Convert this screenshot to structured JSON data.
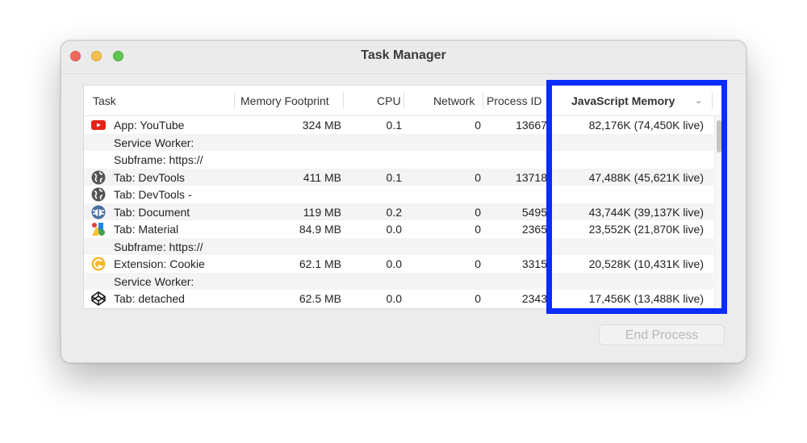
{
  "window": {
    "title": "Task Manager"
  },
  "colors": {
    "highlight": "#0a2cff",
    "close": "#ee6a5f",
    "minimize": "#f5bf4f",
    "maximize": "#61c554"
  },
  "columns": [
    "Task",
    "Memory Footprint",
    "CPU",
    "Network",
    "Process ID",
    "JavaScript Memory"
  ],
  "sort_indicator": "chevron-down-icon",
  "rows": [
    {
      "icon": "youtube-icon",
      "task": "App: YouTube",
      "memory": "324 MB",
      "cpu": "0.1",
      "network": "0",
      "pid": "13667",
      "js": "82,176K (74,450K live)"
    },
    {
      "icon": "",
      "task": "Service Worker:",
      "memory": "",
      "cpu": "",
      "network": "",
      "pid": "",
      "js": ""
    },
    {
      "icon": "",
      "task": "Subframe: https://",
      "memory": "",
      "cpu": "",
      "network": "",
      "pid": "",
      "js": ""
    },
    {
      "icon": "globe-icon",
      "task": "Tab: DevTools",
      "memory": "411 MB",
      "cpu": "0.1",
      "network": "0",
      "pid": "13718",
      "js": "47,488K (45,621K live)"
    },
    {
      "icon": "globe-icon",
      "task": "Tab: DevTools -",
      "memory": "",
      "cpu": "",
      "network": "",
      "pid": "",
      "js": ""
    },
    {
      "icon": "bug-icon",
      "task": "Tab: Document",
      "memory": "119 MB",
      "cpu": "0.2",
      "network": "0",
      "pid": "5495",
      "js": "43,744K (39,137K live)"
    },
    {
      "icon": "material-icon",
      "task": "Tab: Material",
      "memory": "84.9 MB",
      "cpu": "0.0",
      "network": "0",
      "pid": "2365",
      "js": "23,552K (21,870K live)"
    },
    {
      "icon": "",
      "task": "Subframe: https://",
      "memory": "",
      "cpu": "",
      "network": "",
      "pid": "",
      "js": ""
    },
    {
      "icon": "cookie-extension-icon",
      "task": "Extension: Cookie",
      "memory": "62.1 MB",
      "cpu": "0.0",
      "network": "0",
      "pid": "3315",
      "js": "20,528K (10,431K live)"
    },
    {
      "icon": "",
      "task": "Service Worker:",
      "memory": "",
      "cpu": "",
      "network": "",
      "pid": "",
      "js": ""
    },
    {
      "icon": "codepen-icon",
      "task": "Tab: detached",
      "memory": "62.5 MB",
      "cpu": "0.0",
      "network": "0",
      "pid": "2343",
      "js": "17,456K (13,488K live)"
    }
  ],
  "end_process_label": "End Process"
}
